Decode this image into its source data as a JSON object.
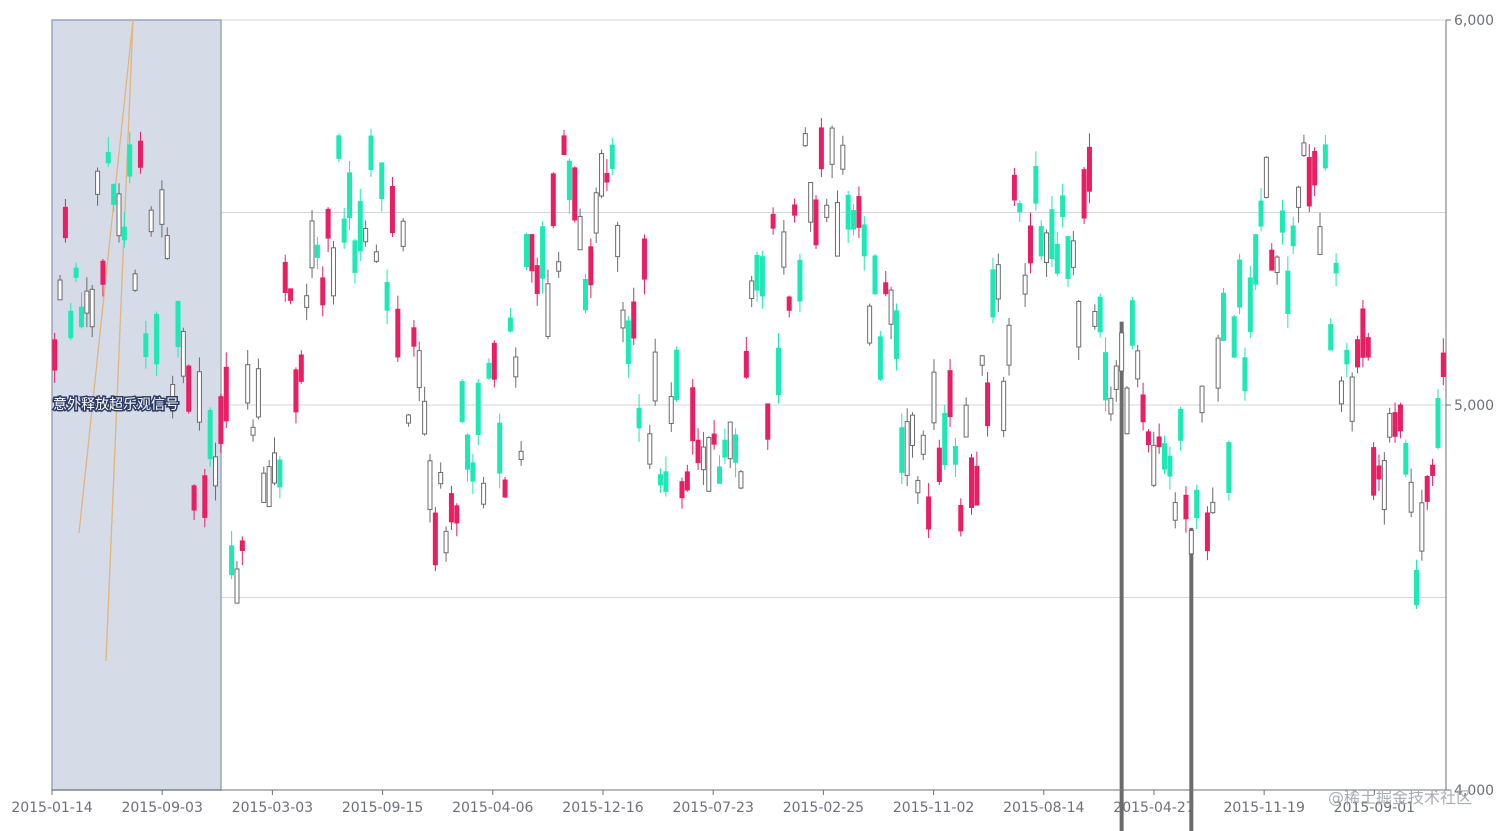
{
  "chart_data": {
    "type": "candlestick",
    "title": "",
    "xlabel": "",
    "ylabel": "",
    "ylim": [
      4000,
      6000
    ],
    "y_ticks": [
      "6,000",
      "5,000",
      "4,000"
    ],
    "y_tick_values": [
      6000,
      5000,
      4000
    ],
    "x_tick_labels": [
      "2015-01-14",
      "2015-09-03",
      "2015-03-03",
      "2015-09-15",
      "2015-04-06",
      "2015-12-16",
      "2015-07-23",
      "2015-02-25",
      "2015-11-02",
      "2015-08-14",
      "2015-04-27",
      "2015-11-19",
      "2015-09-01"
    ],
    "grid": true,
    "colors": {
      "up": "#e91e63",
      "down": "#1de9b6",
      "neutral": "#6b6b6b",
      "selection": "#d5dbe7",
      "selection_border": "#9aa6c2",
      "trend": "#e3b57a"
    },
    "seed": 20150114,
    "candle_count": 260,
    "annotation": {
      "label": "意外释放超乐观信号"
    },
    "spikes": [
      {
        "index": 199,
        "value": 3800
      },
      {
        "index": 212,
        "value": 3800
      }
    ]
  },
  "watermark": "@稀土掘金技术社区"
}
